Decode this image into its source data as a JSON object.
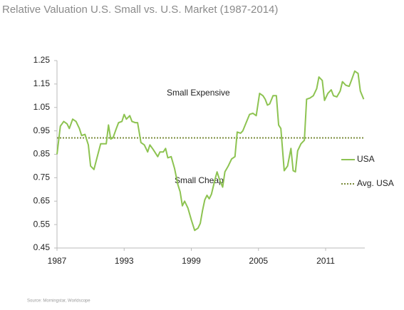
{
  "chart_data": {
    "type": "line",
    "title": "Relative Valuation U.S. Small vs. U.S. Market (1987-2014)",
    "annotations": [
      "Small Expensive",
      "Small Cheap"
    ],
    "source": "Source: Morningstar, Worldscope",
    "xlim": [
      1987,
      2014.5
    ],
    "xticks": [
      1987,
      1993,
      1999,
      2005,
      2011
    ],
    "ylim": [
      0.45,
      1.25
    ],
    "yticks": [
      1.25,
      1.15,
      1.05,
      0.95,
      0.85,
      0.75,
      0.65,
      0.55,
      0.45
    ],
    "legend": "right",
    "series": [
      {
        "name": "USA",
        "color": "#8dc351",
        "x": [
          1987.0,
          1987.3,
          1987.6,
          1987.9,
          1988.1,
          1988.4,
          1988.7,
          1989.0,
          1989.2,
          1989.5,
          1989.8,
          1990.0,
          1990.3,
          1990.6,
          1990.9,
          1991.2,
          1991.4,
          1991.6,
          1991.8,
          1992.0,
          1992.3,
          1992.5,
          1992.8,
          1993.0,
          1993.2,
          1993.5,
          1993.7,
          1994.0,
          1994.2,
          1994.5,
          1994.8,
          1995.1,
          1995.3,
          1995.6,
          1996.0,
          1996.2,
          1996.5,
          1996.7,
          1996.9,
          1997.2,
          1997.5,
          1997.8,
          1998.0,
          1998.2,
          1998.4,
          1998.7,
          1999.0,
          1999.3,
          1999.6,
          1999.8,
          2000.0,
          2000.2,
          2000.4,
          2000.6,
          2000.8,
          2001.1,
          2001.3,
          2001.5,
          2001.8,
          2002.0,
          2002.3,
          2002.6,
          2002.9,
          2003.1,
          2003.4,
          2003.6,
          2003.9,
          2004.2,
          2004.5,
          2004.8,
          2005.1,
          2005.4,
          2005.6,
          2005.8,
          2006.0,
          2006.3,
          2006.6,
          2006.8,
          2007.0,
          2007.3,
          2007.6,
          2007.9,
          2008.1,
          2008.3,
          2008.5,
          2008.8,
          2009.1,
          2009.3,
          2009.6,
          2009.9,
          2010.2,
          2010.4,
          2010.7,
          2010.9,
          2011.2,
          2011.5,
          2011.7,
          2012.0,
          2012.3,
          2012.5,
          2012.8,
          2013.1,
          2013.3,
          2013.6,
          2013.9,
          2014.1,
          2014.4
        ],
        "values": [
          0.85,
          0.97,
          0.99,
          0.98,
          0.96,
          1.0,
          0.99,
          0.96,
          0.93,
          0.935,
          0.89,
          0.8,
          0.785,
          0.84,
          0.895,
          0.895,
          0.895,
          0.975,
          0.915,
          0.92,
          0.96,
          0.985,
          0.99,
          1.02,
          1.0,
          1.015,
          0.99,
          0.985,
          0.985,
          0.9,
          0.89,
          0.86,
          0.89,
          0.87,
          0.84,
          0.86,
          0.86,
          0.875,
          0.835,
          0.84,
          0.79,
          0.72,
          0.69,
          0.63,
          0.65,
          0.62,
          0.57,
          0.525,
          0.535,
          0.555,
          0.61,
          0.655,
          0.675,
          0.66,
          0.68,
          0.74,
          0.775,
          0.745,
          0.71,
          0.775,
          0.8,
          0.83,
          0.84,
          0.945,
          0.94,
          0.95,
          0.985,
          1.02,
          1.025,
          1.015,
          1.11,
          1.1,
          1.085,
          1.06,
          1.065,
          1.1,
          1.1,
          0.975,
          0.96,
          0.78,
          0.8,
          0.875,
          0.78,
          0.775,
          0.865,
          0.895,
          0.91,
          1.085,
          1.09,
          1.1,
          1.13,
          1.18,
          1.165,
          1.08,
          1.11,
          1.125,
          1.1,
          1.095,
          1.12,
          1.16,
          1.145,
          1.14,
          1.165,
          1.205,
          1.195,
          1.12,
          1.085
        ]
      }
    ],
    "reference_line": {
      "name": "Avg. USA",
      "value": 0.92,
      "color": "#7b8c3c"
    }
  }
}
